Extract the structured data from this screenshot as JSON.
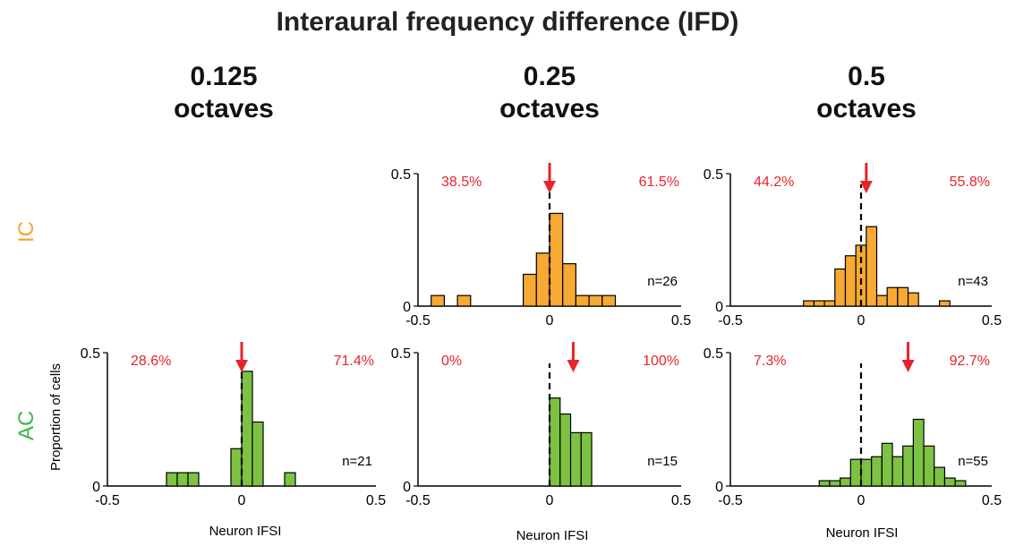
{
  "figure": {
    "title": "Interaural frequency difference (IFD)",
    "columns": [
      {
        "value": "0.125",
        "unit": "octaves"
      },
      {
        "value": "0.25",
        "unit": "octaves"
      },
      {
        "value": "0.5",
        "unit": "octaves"
      }
    ],
    "rows": [
      {
        "label": "IC",
        "color": "#F5A623"
      },
      {
        "label": "AC",
        "color": "#3DB54A"
      }
    ],
    "ylabel": "Proportion of cells",
    "xlabel": "Neuron IFSI"
  },
  "colors": {
    "ic_bar": "#F7A933",
    "ac_bar": "#7DC242",
    "annotation": "#E8232A",
    "ic_label": "#F5A623",
    "ac_label": "#3DB54A"
  },
  "chart_data": [
    {
      "id": "ic-0.25",
      "type": "bar",
      "row": "IC",
      "ifd": "0.25",
      "xlim": [
        -0.5,
        0.5
      ],
      "ylim": [
        0,
        0.5
      ],
      "xticks": [
        "-0.5",
        "0",
        "0.5"
      ],
      "yticks": [
        "0",
        "0.5"
      ],
      "bin_width": 0.05,
      "bins": [
        [
          -0.425,
          0.04
        ],
        [
          -0.325,
          0.04
        ],
        [
          -0.075,
          0.12
        ],
        [
          -0.025,
          0.2
        ],
        [
          0.025,
          0.35
        ],
        [
          0.075,
          0.16
        ],
        [
          0.125,
          0.04
        ],
        [
          0.175,
          0.04
        ],
        [
          0.225,
          0.04
        ]
      ],
      "left_pct": "38.5%",
      "right_pct": "61.5%",
      "n": "n=26",
      "median": 0.0,
      "dashed_x": 0.0
    },
    {
      "id": "ic-0.5",
      "type": "bar",
      "row": "IC",
      "ifd": "0.5",
      "xlim": [
        -0.5,
        0.5
      ],
      "ylim": [
        0,
        0.5
      ],
      "xticks": [
        "-0.5",
        "0",
        "0.5"
      ],
      "yticks": [
        "0",
        "0.5"
      ],
      "bin_width": 0.04,
      "bins": [
        [
          -0.2,
          0.02
        ],
        [
          -0.16,
          0.02
        ],
        [
          -0.12,
          0.02
        ],
        [
          -0.08,
          0.14
        ],
        [
          -0.04,
          0.19
        ],
        [
          0.0,
          0.23
        ],
        [
          0.04,
          0.3
        ],
        [
          0.08,
          0.04
        ],
        [
          0.12,
          0.07
        ],
        [
          0.16,
          0.07
        ],
        [
          0.2,
          0.05
        ],
        [
          0.32,
          0.02
        ]
      ],
      "left_pct": "44.2%",
      "right_pct": "55.8%",
      "n": "n=43",
      "median": 0.02,
      "dashed_x": 0.0
    },
    {
      "id": "ac-0.125",
      "type": "bar",
      "row": "AC",
      "ifd": "0.125",
      "xlim": [
        -0.5,
        0.5
      ],
      "ylim": [
        0,
        0.5
      ],
      "xticks": [
        "-0.5",
        "0",
        "0.5"
      ],
      "yticks": [
        "0",
        "0.5"
      ],
      "bin_width": 0.04,
      "bins": [
        [
          -0.26,
          0.05
        ],
        [
          -0.22,
          0.05
        ],
        [
          -0.18,
          0.05
        ],
        [
          -0.02,
          0.14
        ],
        [
          0.02,
          0.43
        ],
        [
          0.06,
          0.24
        ],
        [
          0.18,
          0.05
        ]
      ],
      "left_pct": "28.6%",
      "right_pct": "71.4%",
      "n": "n=21",
      "median": 0.0,
      "dashed_x": 0.0
    },
    {
      "id": "ac-0.25",
      "type": "bar",
      "row": "AC",
      "ifd": "0.25",
      "xlim": [
        -0.5,
        0.5
      ],
      "ylim": [
        0,
        0.5
      ],
      "xticks": [
        "-0.5",
        "0",
        "0.5"
      ],
      "yticks": [
        "0",
        "0.5"
      ],
      "bin_width": 0.04,
      "bins": [
        [
          0.02,
          0.33
        ],
        [
          0.06,
          0.27
        ],
        [
          0.1,
          0.2
        ],
        [
          0.14,
          0.2
        ]
      ],
      "left_pct": "0%",
      "right_pct": "100%",
      "n": "n=15",
      "median": 0.09,
      "dashed_x": 0.0
    },
    {
      "id": "ac-0.5",
      "type": "bar",
      "row": "AC",
      "ifd": "0.5",
      "xlim": [
        -0.5,
        0.5
      ],
      "ylim": [
        0,
        0.5
      ],
      "xticks": [
        "-0.5",
        "0",
        "0.5"
      ],
      "yticks": [
        "0",
        "0.5"
      ],
      "bin_width": 0.04,
      "bins": [
        [
          -0.14,
          0.02
        ],
        [
          -0.1,
          0.02
        ],
        [
          -0.06,
          0.03
        ],
        [
          -0.02,
          0.1
        ],
        [
          0.02,
          0.1
        ],
        [
          0.06,
          0.11
        ],
        [
          0.1,
          0.16
        ],
        [
          0.14,
          0.11
        ],
        [
          0.18,
          0.15
        ],
        [
          0.22,
          0.25
        ],
        [
          0.26,
          0.15
        ],
        [
          0.3,
          0.07
        ],
        [
          0.34,
          0.03
        ],
        [
          0.38,
          0.02
        ]
      ],
      "left_pct": "7.3%",
      "right_pct": "92.7%",
      "n": "n=55",
      "median": 0.18,
      "dashed_x": 0.0
    }
  ]
}
